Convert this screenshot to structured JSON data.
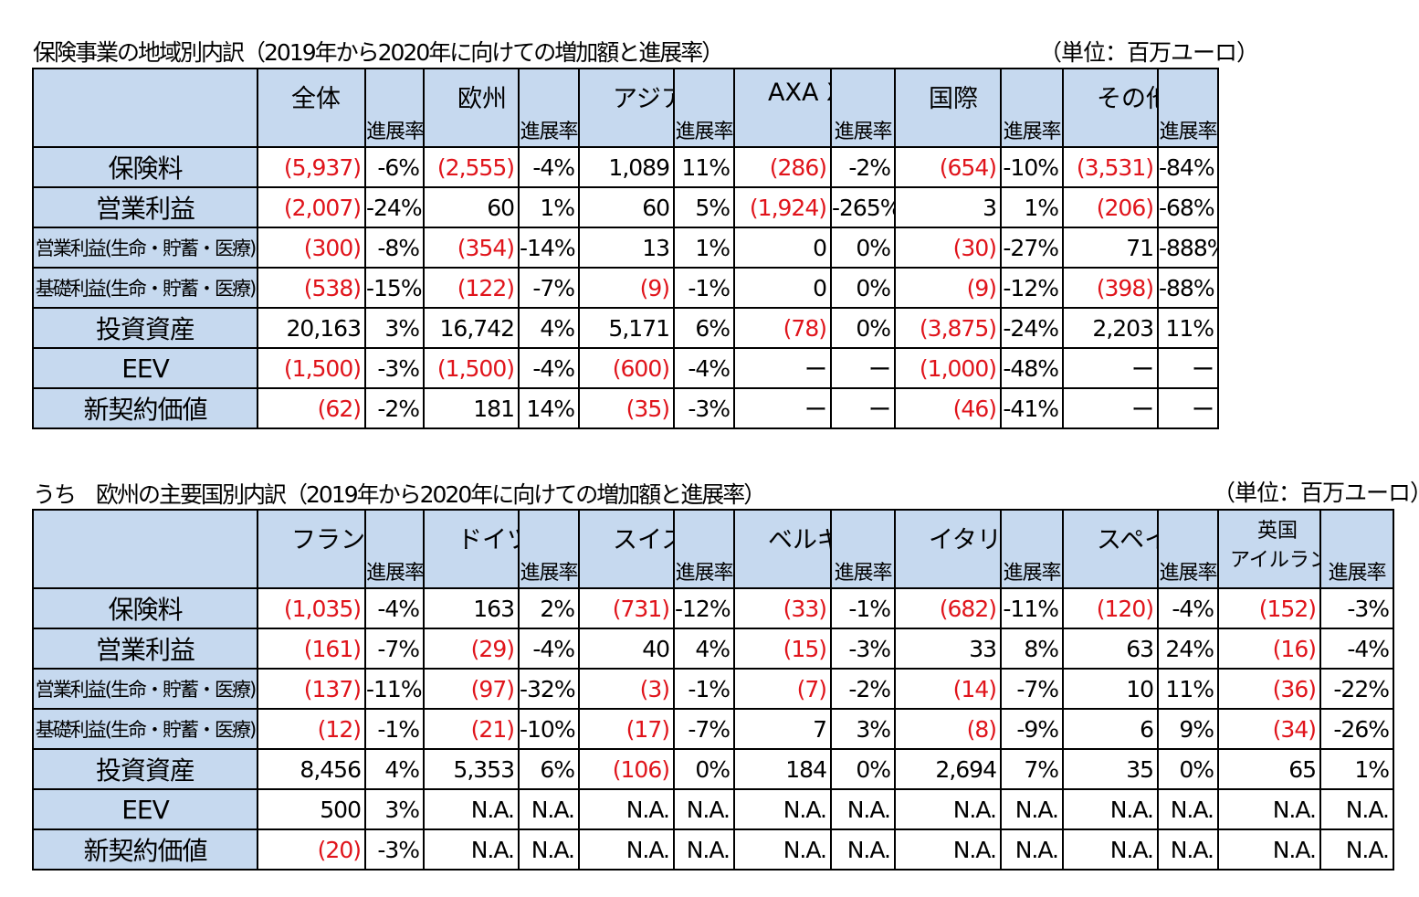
{
  "table1": {
    "title": "保険事業の地域別内訳（2019年から2020年に向けての増加額と進展率）",
    "unit": "（単位：百万ユーロ）",
    "rate_label": "進展率",
    "groups": [
      "全体",
      "欧州",
      "アジア",
      "AXA XL",
      "国際",
      "その他"
    ],
    "rows": [
      {
        "label": "保険料",
        "cells": [
          "(5,937)",
          "-6%",
          "(2,555)",
          "-4%",
          "1,089",
          "11%",
          "(286)",
          "-2%",
          "(654)",
          "-10%",
          "(3,531)",
          "-84%"
        ]
      },
      {
        "label": "営業利益",
        "cells": [
          "(2,007)",
          "-24%",
          "60",
          "1%",
          "60",
          "5%",
          "(1,924)",
          "-265%",
          "3",
          "1%",
          "(206)",
          "-68%"
        ]
      },
      {
        "label": "営業利益(生命・貯蓄・医療)",
        "cells": [
          "(300)",
          "-8%",
          "(354)",
          "-14%",
          "13",
          "1%",
          "0",
          "0%",
          "(30)",
          "-27%",
          "71",
          "-888%"
        ]
      },
      {
        "label": "基礎利益(生命・貯蓄・医療)",
        "cells": [
          "(538)",
          "-15%",
          "(122)",
          "-7%",
          "(9)",
          "-1%",
          "0",
          "0%",
          "(9)",
          "-12%",
          "(398)",
          "-88%"
        ]
      },
      {
        "label": "投資資産",
        "cells": [
          "20,163",
          "3%",
          "16,742",
          "4%",
          "5,171",
          "6%",
          "(78)",
          "0%",
          "(3,875)",
          "-24%",
          "2,203",
          "11%"
        ]
      },
      {
        "label": "EEV",
        "cells": [
          "(1,500)",
          "-3%",
          "(1,500)",
          "-4%",
          "(600)",
          "-4%",
          "ー",
          "ー",
          "(1,000)",
          "-48%",
          "ー",
          "ー"
        ]
      },
      {
        "label": "新契約価値",
        "cells": [
          "(62)",
          "-2%",
          "181",
          "14%",
          "(35)",
          "-3%",
          "ー",
          "ー",
          "(46)",
          "-41%",
          "ー",
          "ー"
        ]
      }
    ]
  },
  "table2": {
    "title": "うち　欧州の主要国別内訳（2019年から2020年に向けての増加額と進展率）",
    "unit": "（単位：百万ユーロ）",
    "rate_label": "進展率",
    "groups": [
      "フランス",
      "ドイツ",
      "スイス",
      "ベルギー",
      "イタリア",
      "スペイン"
    ],
    "last_group_lines": [
      "英国",
      "アイルランド"
    ],
    "rows": [
      {
        "label": "保険料",
        "cells": [
          "(1,035)",
          "-4%",
          "163",
          "2%",
          "(731)",
          "-12%",
          "(33)",
          "-1%",
          "(682)",
          "-11%",
          "(120)",
          "-4%",
          "(152)",
          "-3%"
        ]
      },
      {
        "label": "営業利益",
        "cells": [
          "(161)",
          "-7%",
          "(29)",
          "-4%",
          "40",
          "4%",
          "(15)",
          "-3%",
          "33",
          "8%",
          "63",
          "24%",
          "(16)",
          "-4%"
        ]
      },
      {
        "label": "営業利益(生命・貯蓄・医療)",
        "cells": [
          "(137)",
          "-11%",
          "(97)",
          "-32%",
          "(3)",
          "-1%",
          "(7)",
          "-2%",
          "(14)",
          "-7%",
          "10",
          "11%",
          "(36)",
          "-22%"
        ]
      },
      {
        "label": "基礎利益(生命・貯蓄・医療)",
        "cells": [
          "(12)",
          "-1%",
          "(21)",
          "-10%",
          "(17)",
          "-7%",
          "7",
          "3%",
          "(8)",
          "-9%",
          "6",
          "9%",
          "(34)",
          "-26%"
        ]
      },
      {
        "label": "投資資産",
        "cells": [
          "8,456",
          "4%",
          "5,353",
          "6%",
          "(106)",
          "0%",
          "184",
          "0%",
          "2,694",
          "7%",
          "35",
          "0%",
          "65",
          "1%"
        ]
      },
      {
        "label": "EEV",
        "cells": [
          "500",
          "3%",
          "N.A.",
          "N.A.",
          "N.A.",
          "N.A.",
          "N.A.",
          "N.A.",
          "N.A.",
          "N.A.",
          "N.A.",
          "N.A.",
          "N.A.",
          "N.A."
        ]
      },
      {
        "label": "新契約価値",
        "cells": [
          "(20)",
          "-3%",
          "N.A.",
          "N.A.",
          "N.A.",
          "N.A.",
          "N.A.",
          "N.A.",
          "N.A.",
          "N.A.",
          "N.A.",
          "N.A.",
          "N.A.",
          "N.A."
        ]
      }
    ]
  },
  "colors": {
    "header_bg": "#c6d9ef",
    "negative": "#e0141b",
    "border": "#000000"
  }
}
